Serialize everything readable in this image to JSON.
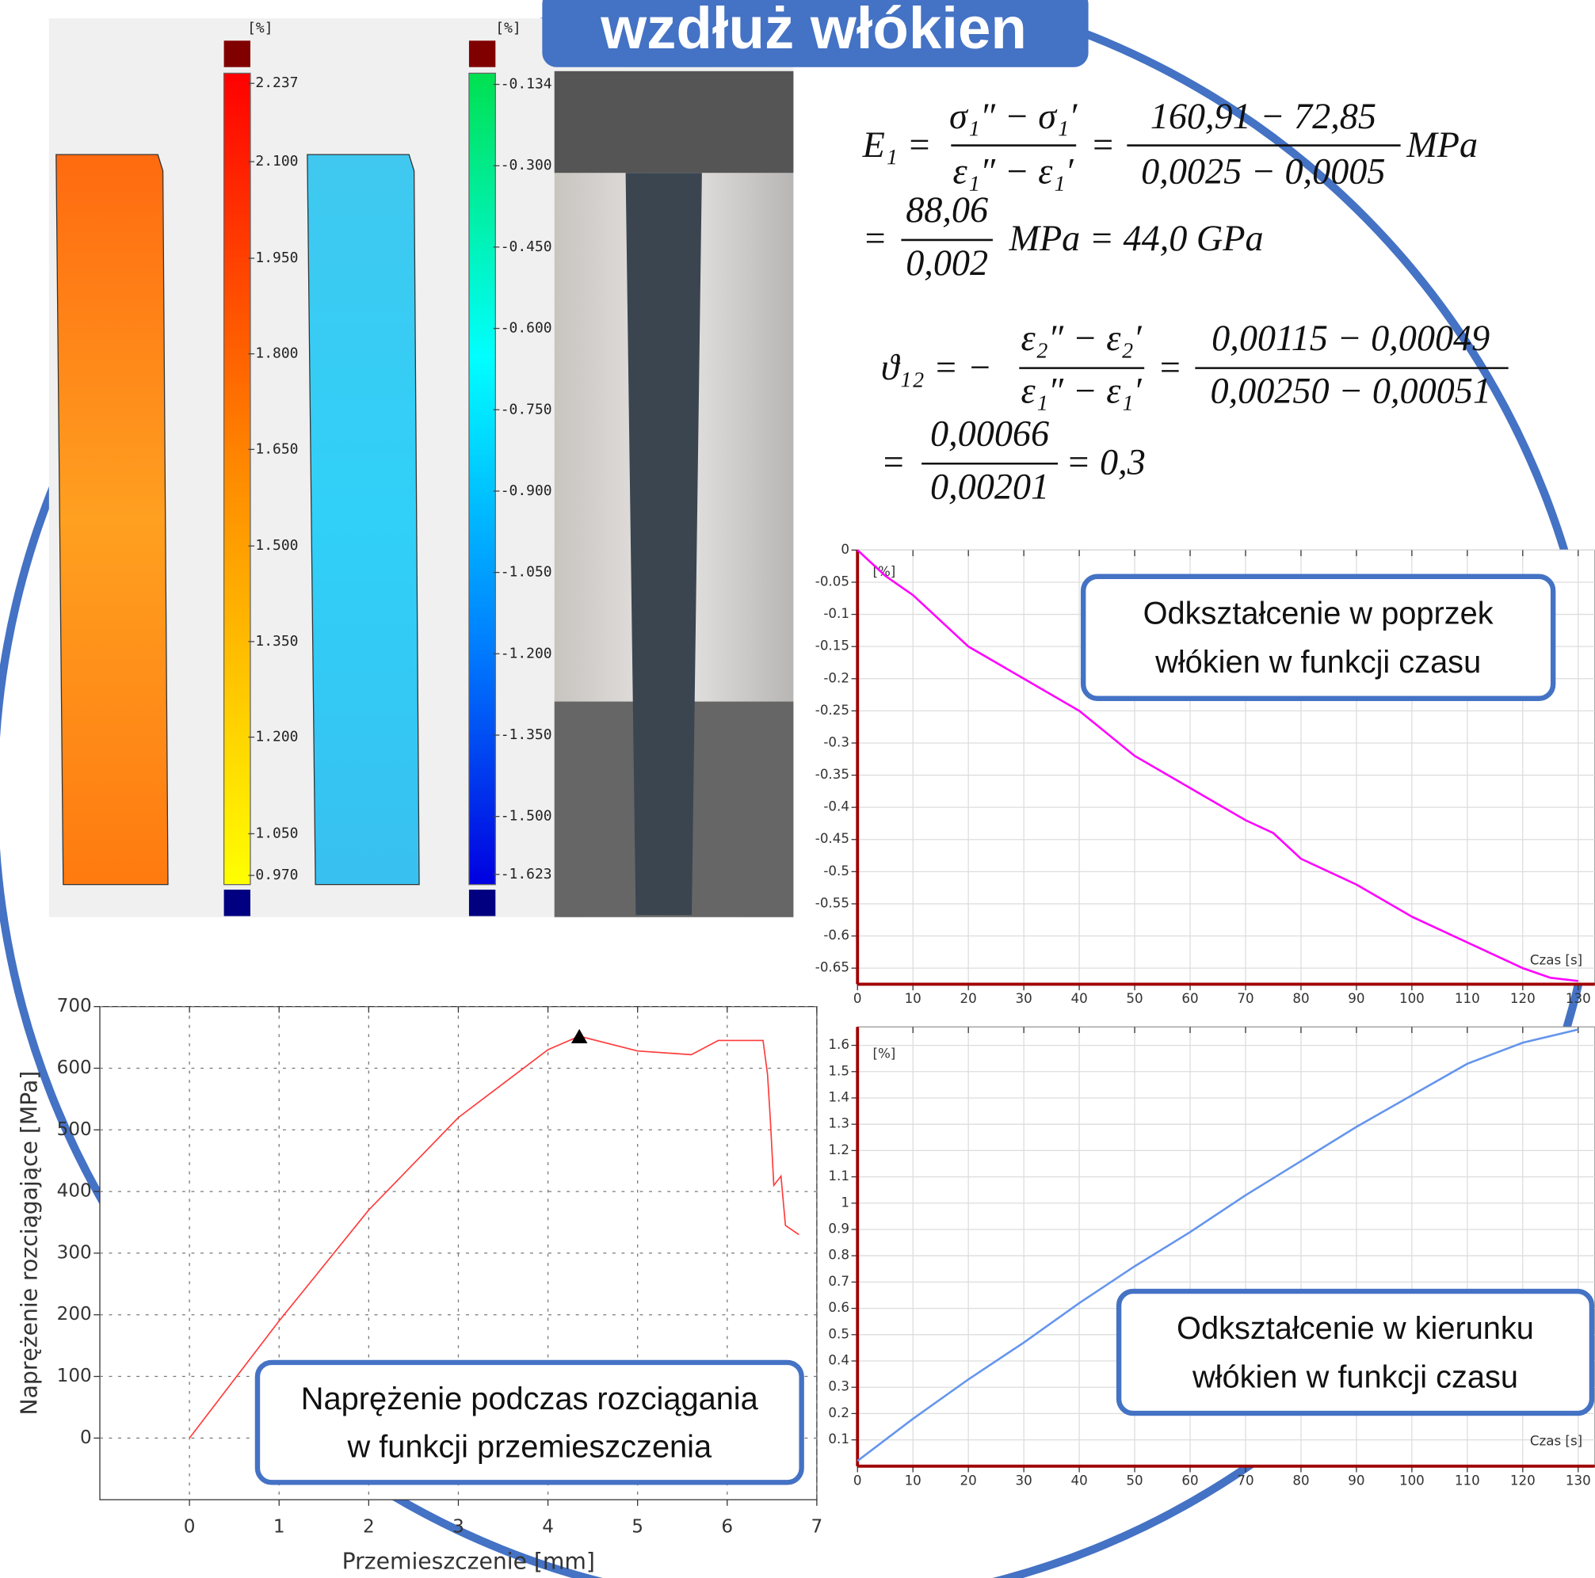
{
  "title": "wzdłuż włókien",
  "colorbars": [
    {
      "unit": "[%]",
      "labels": [
        "2.237",
        "2.100",
        "1.950",
        "1.800",
        "1.650",
        "1.500",
        "1.350",
        "1.200",
        "1.050",
        "0.970"
      ]
    },
    {
      "unit": "[%]",
      "labels": [
        "-0.134",
        "-0.300",
        "-0.450",
        "-0.600",
        "-0.750",
        "-0.900",
        "-1.050",
        "-1.200",
        "-1.350",
        "-1.500",
        "-1.623"
      ]
    }
  ],
  "formulas": [
    {
      "line1": {
        "lhs": "E₁ =",
        "num1": "σ₁″ − σ₁′",
        "den1": "ε₁″ − ε₁′",
        "eq": "=",
        "num2": "160,91 − 72,85",
        "den2": "0,0025 − 0,0005",
        "unit": "MPa"
      },
      "line2": {
        "eq": "=",
        "num": "88,06",
        "den": "0,002",
        "rest": "MPa = 44,0 GPa"
      }
    },
    {
      "line1": {
        "lhs": "ϑ₁₂ = −",
        "num1": "ε₂″ − ε₂′",
        "den1": "ε₁″ − ε₁′",
        "eq": "=",
        "num2": "0,00115 − 0,00049",
        "den2": "0,00250 − 0,00051"
      },
      "line2": {
        "eq": "=",
        "num": "0,00066",
        "den": "0,00201",
        "rest": "= 0,3"
      }
    }
  ],
  "chart_data": [
    {
      "type": "line",
      "x_label": "Przemieszczenie [mm]",
      "y_label": "Naprężenie rozciągające [MPa]",
      "annotation": [
        "Naprężenie podczas rozciągania",
        "w funkcji przemieszczenia"
      ],
      "x": [
        0,
        1,
        2,
        3,
        4,
        4.35,
        5,
        5.6,
        5.9,
        6.4,
        6.45,
        6.48,
        6.52,
        6.6,
        6.65,
        6.7,
        6.8
      ],
      "values": [
        0,
        190,
        370,
        520,
        630,
        652,
        628,
        622,
        645,
        645,
        590,
        520,
        410,
        425,
        345,
        340,
        330
      ],
      "color": "#ff3b3b",
      "markers": [
        {
          "x": 4.35,
          "y": 652
        }
      ],
      "xlim": [
        -1,
        7
      ],
      "xticks": [
        0,
        1,
        2,
        3,
        4,
        5,
        6,
        7
      ],
      "ylim": [
        -100,
        700
      ],
      "yticks": [
        0,
        100,
        200,
        300,
        400,
        500,
        600,
        700
      ],
      "grid": true
    },
    {
      "type": "line",
      "x_label": "Czas [s]",
      "y_label": "[%]",
      "annotation": [
        "Odkształcenie w poprzek",
        "włókien w funkcji czasu"
      ],
      "x": [
        0,
        5,
        10,
        20,
        30,
        40,
        50,
        60,
        70,
        75,
        80,
        90,
        100,
        110,
        120,
        125,
        130
      ],
      "values": [
        0,
        -0.04,
        -0.07,
        -0.15,
        -0.2,
        -0.25,
        -0.32,
        -0.37,
        -0.42,
        -0.44,
        -0.48,
        -0.52,
        -0.57,
        -0.61,
        -0.65,
        -0.665,
        -0.67
      ],
      "color": "#ff00ff",
      "xlim": [
        0,
        133
      ],
      "xticks": [
        0,
        10,
        20,
        30,
        40,
        50,
        60,
        70,
        80,
        90,
        100,
        110,
        120,
        130
      ],
      "ylim": [
        -0.675,
        0
      ],
      "yticks": [
        0,
        -0.05,
        -0.1,
        -0.15,
        -0.2,
        -0.25,
        -0.3,
        -0.35,
        -0.4,
        -0.45,
        -0.5,
        -0.55,
        -0.6,
        -0.65
      ],
      "grid": true
    },
    {
      "type": "line",
      "x_label": "Czas [s]",
      "y_label": "[%]",
      "annotation": [
        "Odkształcenie w kierunku",
        "włókien w funkcji czasu"
      ],
      "x": [
        0,
        10,
        20,
        30,
        40,
        50,
        60,
        70,
        80,
        90,
        100,
        110,
        120,
        130
      ],
      "values": [
        0.02,
        0.18,
        0.33,
        0.47,
        0.62,
        0.76,
        0.89,
        1.03,
        1.16,
        1.29,
        1.41,
        1.53,
        1.61,
        1.66
      ],
      "color": "#6495ed",
      "xlim": [
        0,
        133
      ],
      "xticks": [
        0,
        10,
        20,
        30,
        40,
        50,
        60,
        70,
        80,
        90,
        100,
        110,
        120,
        130
      ],
      "ylim": [
        0,
        1.67
      ],
      "yticks": [
        0.1,
        0.2,
        0.3,
        0.4,
        0.5,
        0.6,
        0.7,
        0.8,
        0.9,
        1,
        1.1,
        1.2,
        1.3,
        1.4,
        1.5,
        1.6
      ],
      "grid": true
    }
  ]
}
